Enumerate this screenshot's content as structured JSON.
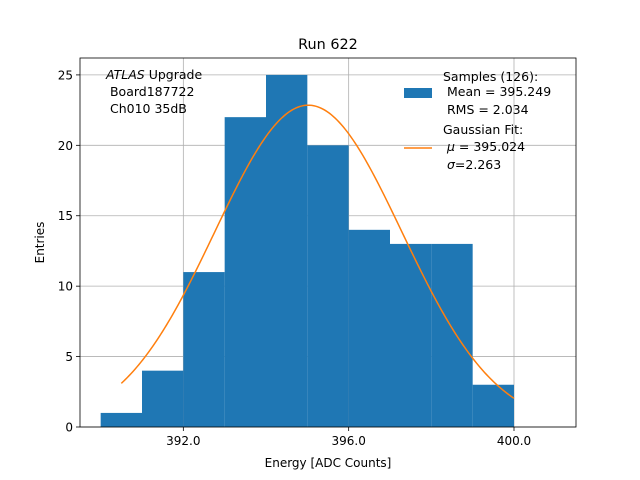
{
  "chart_data": {
    "type": "bar",
    "title": "Run 622",
    "xlabel": "Energy [ADC Counts]",
    "ylabel": "Entries",
    "xlim": [
      389.5,
      401.5
    ],
    "ylim": [
      0,
      26.2
    ],
    "grid": true,
    "x_ticks": [
      392.0,
      396.0,
      400.0
    ],
    "x_tick_labels": [
      "392.0",
      "396.0",
      "400.0"
    ],
    "y_ticks": [
      0,
      5,
      10,
      15,
      20,
      25
    ],
    "y_tick_labels": [
      "0",
      "5",
      "10",
      "15",
      "20",
      "25"
    ],
    "bin_width": 1,
    "bins": [
      {
        "x": 390,
        "count": 1
      },
      {
        "x": 391,
        "count": 4
      },
      {
        "x": 392,
        "count": 11
      },
      {
        "x": 393,
        "count": 22
      },
      {
        "x": 394,
        "count": 25
      },
      {
        "x": 395,
        "count": 20
      },
      {
        "x": 396,
        "count": 14
      },
      {
        "x": 397,
        "count": 13
      },
      {
        "x": 398,
        "count": 13
      },
      {
        "x": 399,
        "count": 3
      }
    ],
    "fit": {
      "mu": 395.024,
      "sigma": 2.263,
      "amplitude": 22.85,
      "x_range": [
        390.5,
        400.0
      ]
    },
    "colors": {
      "bars": "#1f77b4",
      "fit": "#ff7f0e",
      "grid": "#b0b0b0"
    },
    "annotation": {
      "atlas": "ATLAS",
      "line1_rest": " Upgrade",
      "line2": " Board187722",
      "line3": " Ch010 35dB"
    },
    "legend": {
      "placement": "upper-right",
      "samples_title": "Samples (126):",
      "samples_mean": " Mean = 395.249",
      "samples_rms": " RMS = 2.034",
      "fit_title": "Gaussian Fit:",
      "fit_mu_sym": "μ",
      "fit_mu_val": " = 395.024",
      "fit_sigma_sym": "σ",
      "fit_sigma_val": "=2.263"
    }
  }
}
